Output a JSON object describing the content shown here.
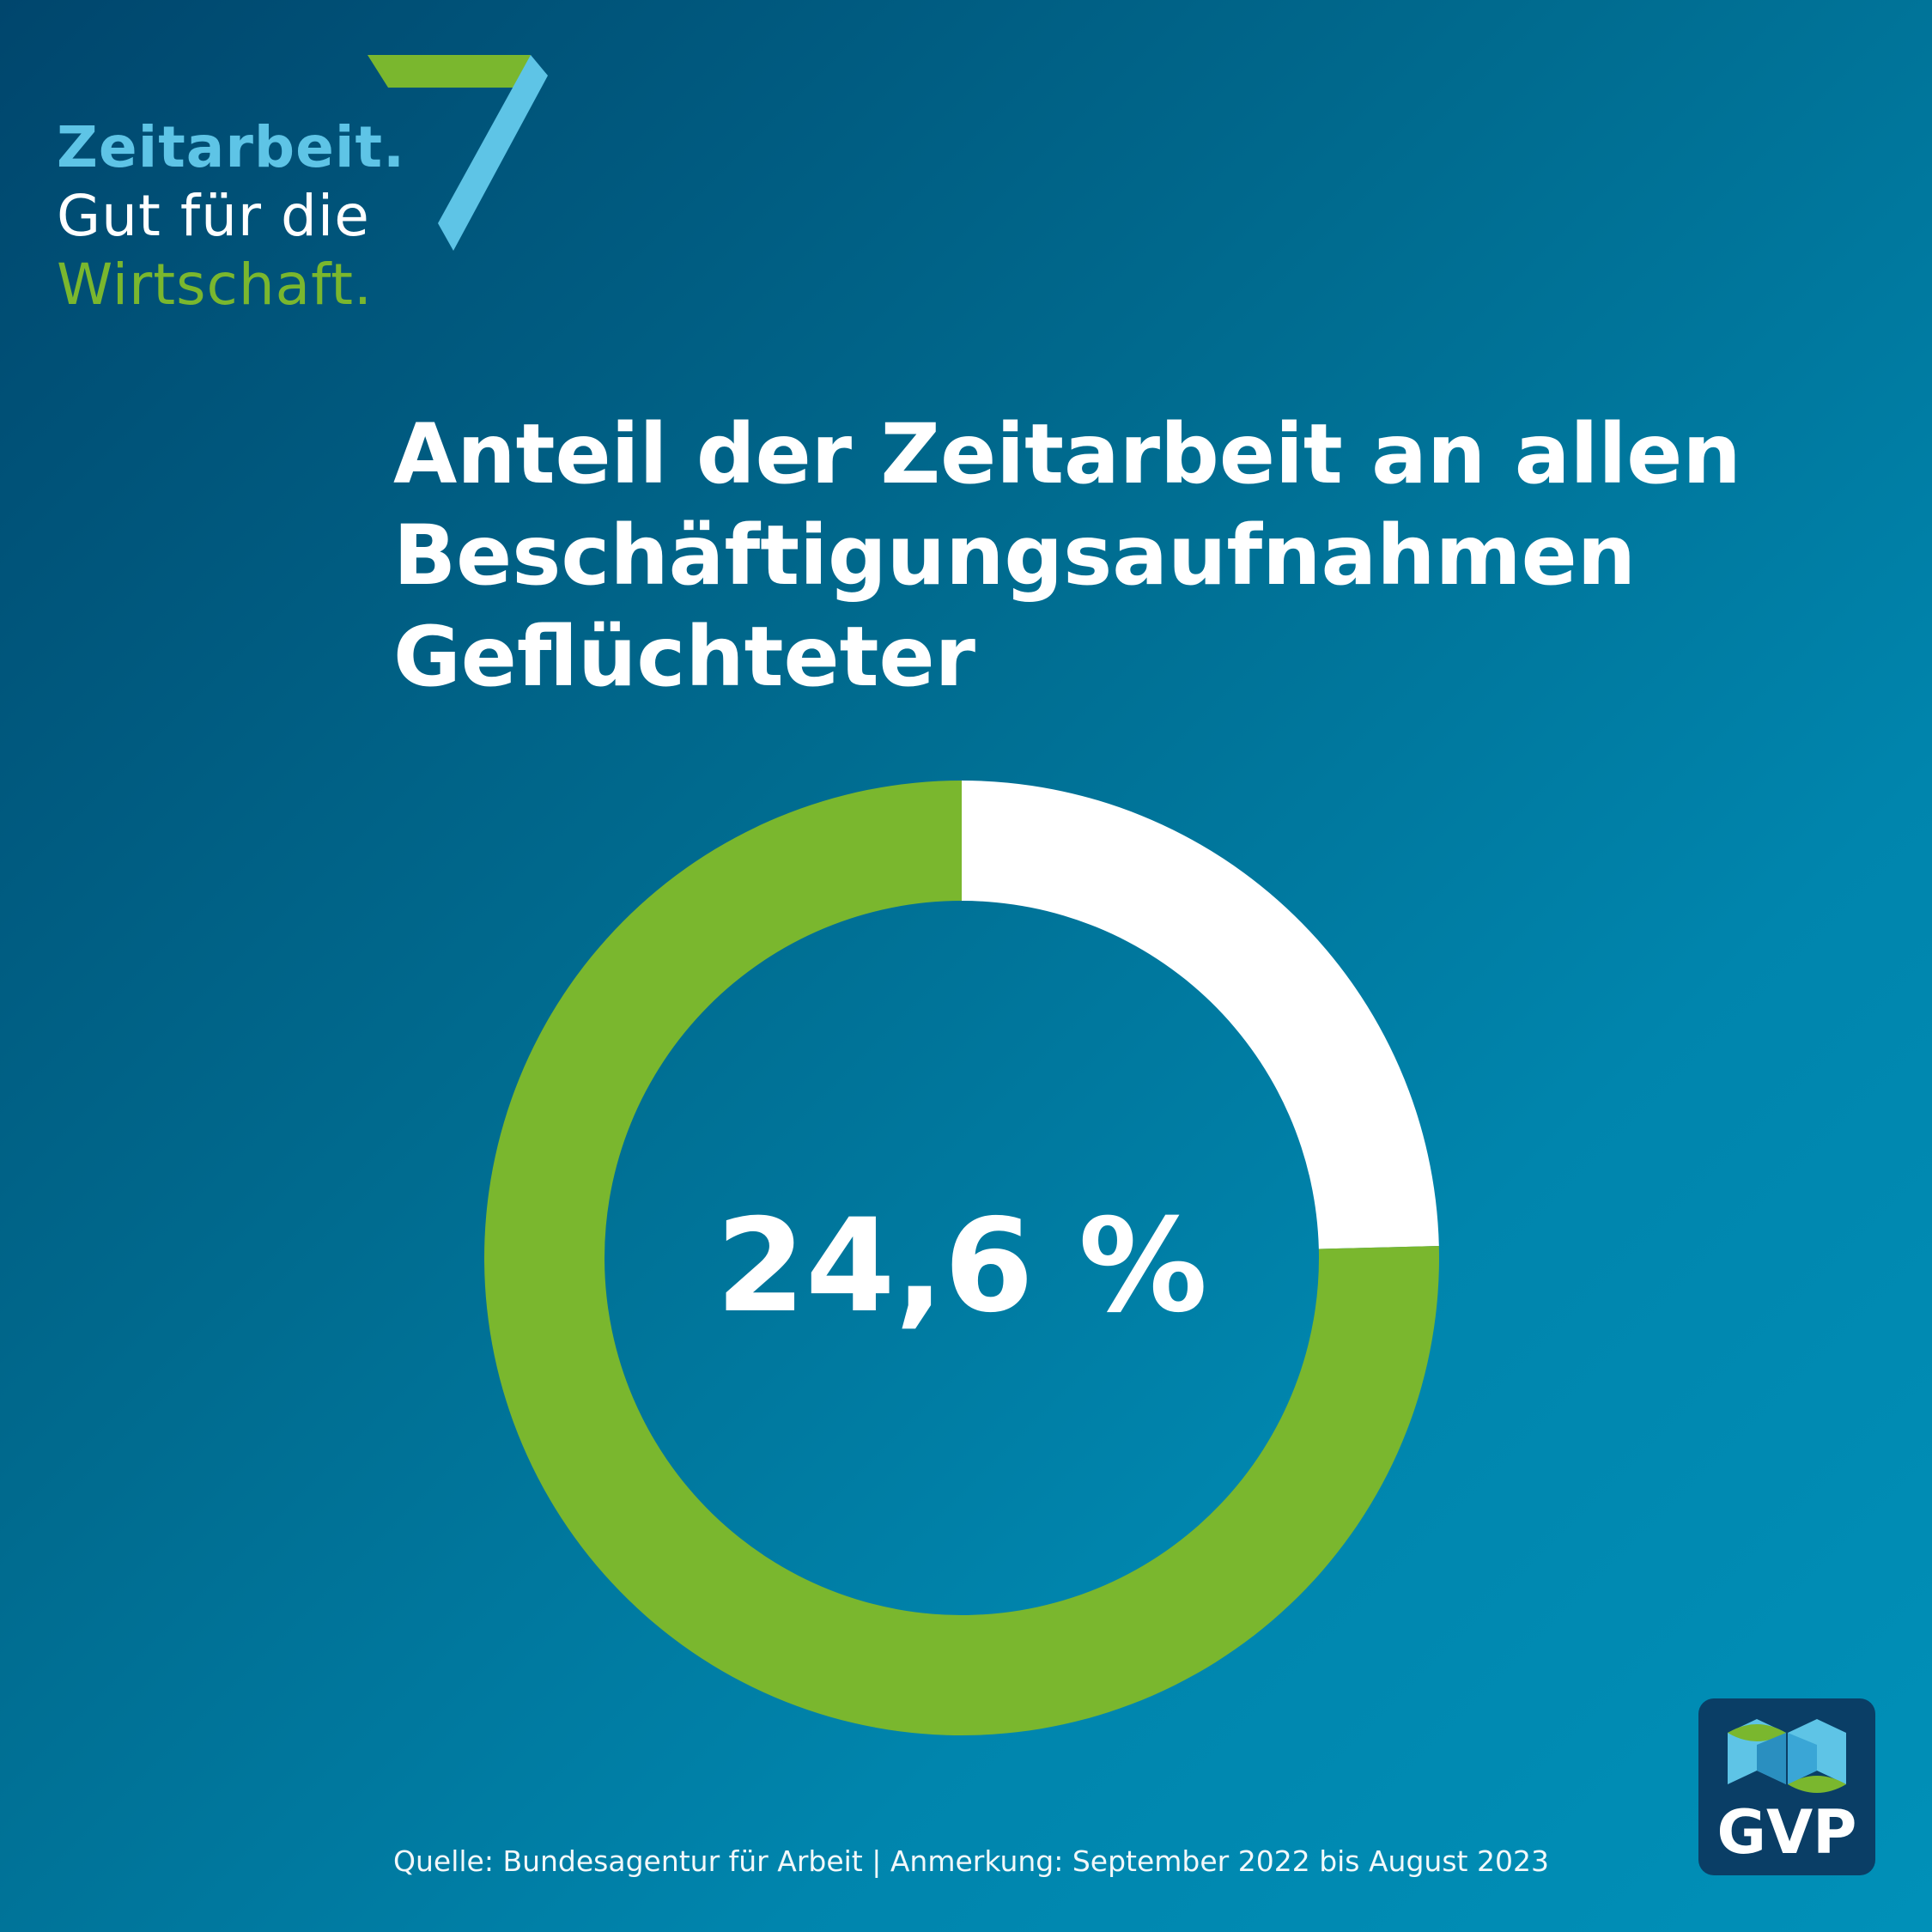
{
  "logo": {
    "line1": "Zeitarbeit.",
    "line2": "Gut für die",
    "line3": "Wirtschaft."
  },
  "title_lines": [
    "Anteil der Zeitarbeit an allen",
    "Beschäftigungsaufnahmen",
    "Geflüchteter"
  ],
  "chart_data": {
    "type": "pie",
    "style": "donut",
    "slices": [
      {
        "value": 24.6,
        "color": "#ffffff"
      },
      {
        "value": 75.4,
        "color": "#7ab72e"
      }
    ],
    "center_label": "24,6 %"
  },
  "badge": {
    "text": "GVP"
  },
  "source": "Quelle: Bundesagentur für Arbeit | Anmerkung: September 2022 bis August 2023",
  "colors": {
    "accent_green": "#7ab72e",
    "accent_light_blue": "#5ec4e6",
    "badge_bg": "#0a3e66"
  }
}
